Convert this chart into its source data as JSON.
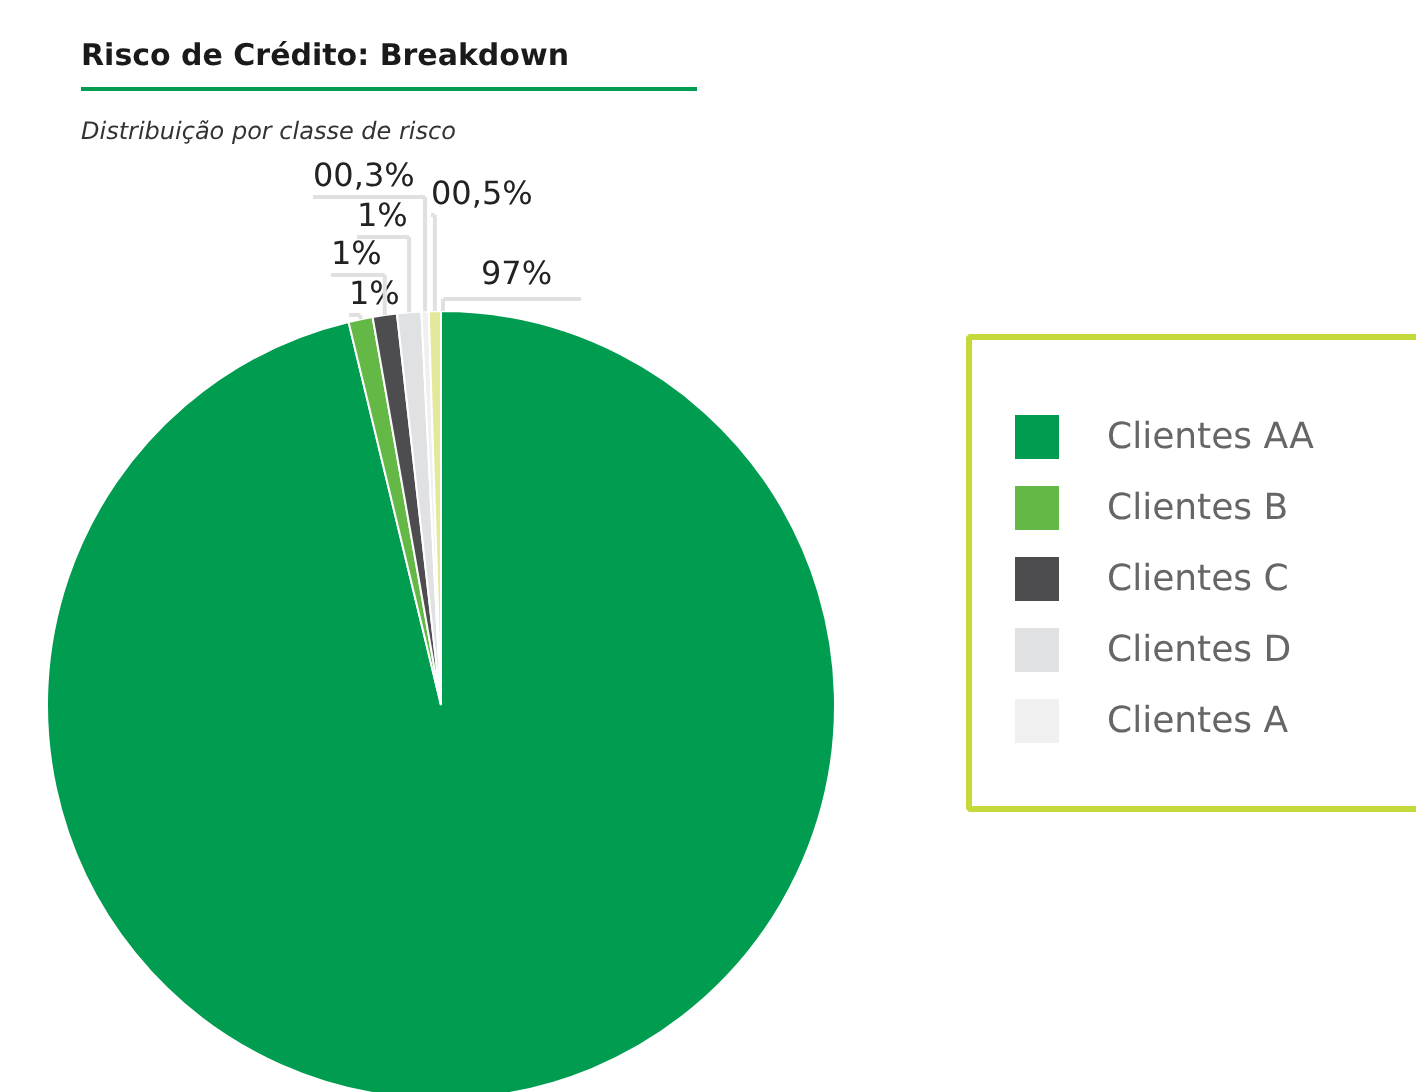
{
  "chart_data": {
    "type": "pie",
    "title": "Risco de Crédito: Breakdown",
    "subtitle": "Distribuição por classe de risco",
    "categories": [
      "Clientes AA",
      "Clientes B",
      "Clientes C",
      "Clientes D",
      "Clientes A",
      null
    ],
    "values": [
      97,
      1,
      1,
      1,
      0.3,
      0.5
    ],
    "value_labels": [
      "97%",
      "1%",
      "1%",
      "1%",
      "00,3%",
      "00,5%"
    ],
    "colors": [
      "#009c50",
      "#64b946",
      "#4d4d50",
      "#e0e1e3",
      "#f0f0f0",
      "#e4e89a"
    ],
    "legend": "right"
  }
}
